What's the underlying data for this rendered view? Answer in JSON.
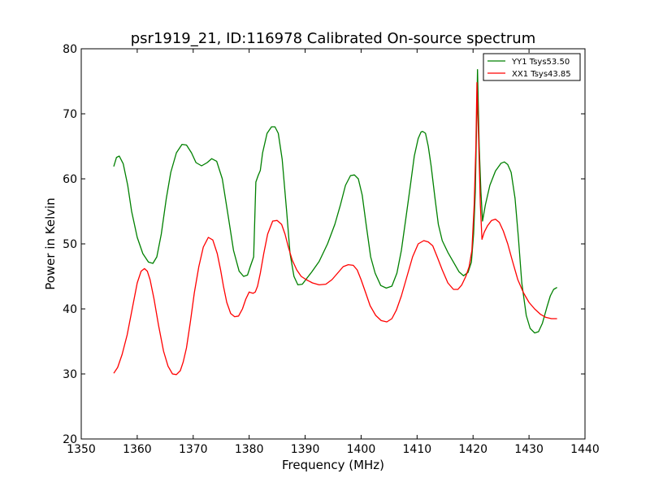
{
  "chart_data": {
    "type": "line",
    "title": "psr1919_21, ID:116978 Calibrated On-source spectrum",
    "xlabel": "Frequency (MHz)",
    "ylabel": "Power in Kelvin",
    "xlim": [
      1350,
      1440
    ],
    "ylim": [
      20,
      80
    ],
    "xticks": [
      "1350",
      "1360",
      "1370",
      "1380",
      "1390",
      "1400",
      "1410",
      "1420",
      "1430",
      "1440"
    ],
    "yticks": [
      "20",
      "30",
      "40",
      "50",
      "60",
      "70",
      "80"
    ],
    "grid": false,
    "legend_position": "top-right",
    "series": [
      {
        "name": "YY1 Tsys53.50",
        "color": "#008000",
        "x": [
          1355.8,
          1356.3,
          1356.8,
          1357.5,
          1358.3,
          1359.0,
          1360.0,
          1361.0,
          1362.0,
          1362.8,
          1363.5,
          1364.3,
          1365.2,
          1366.0,
          1367.0,
          1368.0,
          1368.8,
          1369.7,
          1370.5,
          1371.5,
          1372.5,
          1373.3,
          1374.2,
          1375.2,
          1376.3,
          1377.2,
          1378.2,
          1379.0,
          1379.7,
          1380.2,
          1380.8,
          1381.2,
          1381.6,
          1382.0,
          1382.4,
          1383.2,
          1384.0,
          1384.6,
          1385.2,
          1385.9,
          1386.7,
          1387.3,
          1388.0,
          1388.7,
          1389.5,
          1390.3,
          1391.2,
          1392.5,
          1394.0,
          1395.3,
          1396.3,
          1397.2,
          1398.1,
          1398.8,
          1399.5,
          1400.2,
          1400.9,
          1401.7,
          1402.5,
          1403.5,
          1404.5,
          1405.5,
          1406.4,
          1407.2,
          1408.0,
          1408.8,
          1409.5,
          1410.2,
          1410.7,
          1411.0,
          1411.5,
          1412.0,
          1412.5,
          1413.2,
          1413.8,
          1414.5,
          1415.5,
          1416.5,
          1417.5,
          1418.3,
          1419.1,
          1419.7,
          1420.1,
          1420.4,
          1420.6,
          1420.8,
          1421.1,
          1421.4,
          1421.7,
          1422.2,
          1423.0,
          1424.0,
          1425.0,
          1425.6,
          1426.2,
          1426.8,
          1427.5,
          1428.1,
          1428.7,
          1429.5,
          1430.2,
          1431.0,
          1431.7,
          1432.4,
          1433.2,
          1433.8,
          1434.4,
          1435.0
        ],
        "y": [
          61.9,
          63.3,
          63.5,
          62.3,
          59.0,
          55.0,
          51.0,
          48.5,
          47.2,
          47.0,
          48.0,
          51.5,
          57.0,
          61.0,
          64.0,
          65.3,
          65.2,
          64.0,
          62.5,
          62.0,
          62.5,
          63.1,
          62.7,
          60.0,
          54.0,
          49.0,
          45.8,
          45.0,
          45.2,
          46.5,
          48.0,
          59.5,
          60.5,
          61.3,
          64.0,
          67.0,
          68.0,
          68.0,
          67.0,
          63.0,
          55.0,
          48.5,
          45.0,
          43.7,
          43.8,
          44.7,
          45.7,
          47.3,
          50.0,
          53.0,
          56.0,
          59.0,
          60.5,
          60.6,
          60.0,
          57.5,
          53.0,
          48.0,
          45.5,
          43.6,
          43.2,
          43.5,
          45.5,
          49.0,
          54.0,
          59.0,
          63.5,
          66.2,
          67.2,
          67.3,
          67.0,
          65.0,
          62.0,
          57.0,
          53.0,
          50.5,
          48.7,
          47.2,
          45.7,
          45.1,
          45.6,
          47.2,
          51.5,
          58.0,
          67.0,
          76.8,
          65.0,
          58.0,
          53.5,
          56.0,
          59.0,
          61.2,
          62.4,
          62.6,
          62.2,
          61.0,
          57.0,
          51.0,
          44.0,
          39.0,
          37.0,
          36.3,
          36.5,
          37.8,
          40.3,
          42.0,
          43.0,
          43.3
        ]
      },
      {
        "name": "XX1 Tsys43.85",
        "color": "#ff0000",
        "x": [
          1355.8,
          1356.5,
          1357.3,
          1358.2,
          1359.1,
          1360.0,
          1360.7,
          1361.3,
          1361.8,
          1362.3,
          1363.0,
          1363.8,
          1364.7,
          1365.5,
          1366.3,
          1367.0,
          1367.7,
          1368.2,
          1368.8,
          1369.5,
          1370.2,
          1371.0,
          1371.8,
          1372.7,
          1373.5,
          1374.3,
          1374.9,
          1375.4,
          1376.0,
          1376.7,
          1377.4,
          1378.1,
          1378.8,
          1379.4,
          1380.0,
          1380.3,
          1380.7,
          1381.1,
          1381.5,
          1382.0,
          1382.6,
          1383.3,
          1384.2,
          1385.0,
          1385.8,
          1386.4,
          1387.0,
          1387.7,
          1388.5,
          1389.3,
          1390.2,
          1391.3,
          1392.5,
          1393.7,
          1394.8,
          1395.8,
          1396.8,
          1397.7,
          1398.6,
          1399.3,
          1400.0,
          1400.8,
          1401.6,
          1402.6,
          1403.6,
          1404.6,
          1405.5,
          1406.3,
          1407.2,
          1408.2,
          1409.2,
          1410.2,
          1411.2,
          1412.0,
          1412.8,
          1413.6,
          1414.5,
          1415.5,
          1416.5,
          1417.3,
          1418.0,
          1418.7,
          1419.3,
          1419.8,
          1420.2,
          1420.5,
          1420.7,
          1421.0,
          1421.3,
          1421.6,
          1422.0,
          1422.6,
          1423.3,
          1424.0,
          1424.7,
          1425.4,
          1426.2,
          1427.0,
          1428.0,
          1429.0,
          1430.0,
          1431.0,
          1432.0,
          1433.0,
          1434.0,
          1435.0
        ],
        "y": [
          30.1,
          31.0,
          33.0,
          36.0,
          40.0,
          44.0,
          45.8,
          46.2,
          45.8,
          44.5,
          41.5,
          37.5,
          33.5,
          31.2,
          30.0,
          29.9,
          30.5,
          31.8,
          34.0,
          38.0,
          42.5,
          46.5,
          49.5,
          51.0,
          50.6,
          48.5,
          46.0,
          43.5,
          41.0,
          39.3,
          38.8,
          38.9,
          40.0,
          41.5,
          42.6,
          42.5,
          42.4,
          42.6,
          43.5,
          45.5,
          48.5,
          51.5,
          53.5,
          53.6,
          53.0,
          51.5,
          49.5,
          47.5,
          46.0,
          45.0,
          44.5,
          44.0,
          43.7,
          43.8,
          44.5,
          45.5,
          46.5,
          46.8,
          46.7,
          46.0,
          44.5,
          42.5,
          40.5,
          39.0,
          38.2,
          38.0,
          38.5,
          39.8,
          42.0,
          45.0,
          48.0,
          50.0,
          50.5,
          50.3,
          49.7,
          48.0,
          46.0,
          44.0,
          43.0,
          43.0,
          43.7,
          45.0,
          46.5,
          49.0,
          56.0,
          65.0,
          74.8,
          66.0,
          56.0,
          50.7,
          51.8,
          52.8,
          53.6,
          53.8,
          53.3,
          52.0,
          50.0,
          47.5,
          44.5,
          42.5,
          41.0,
          40.0,
          39.2,
          38.7,
          38.5,
          38.5
        ]
      }
    ]
  }
}
